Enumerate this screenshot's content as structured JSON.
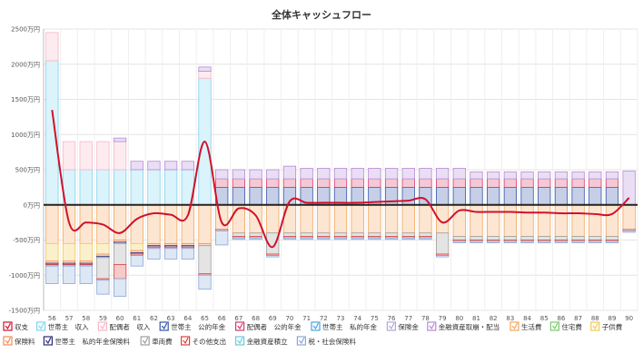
{
  "chart_data": {
    "type": "bar",
    "title": "全体キャッシュフロー",
    "y_unit": "万円",
    "ylim": [
      -1500,
      2500
    ],
    "y_ticks": [
      "2500万円",
      "2000万円",
      "1500万円",
      "1000万円",
      "500万円",
      "0万円",
      "-500万円",
      "-1000万円",
      "-1500万円"
    ],
    "y_tick_values": [
      2500,
      2000,
      1500,
      1000,
      500,
      0,
      -500,
      -1000,
      -1500
    ],
    "categories": [
      "56",
      "57",
      "58",
      "59",
      "60",
      "61",
      "62",
      "63",
      "64",
      "65",
      "66",
      "67",
      "68",
      "69",
      "70",
      "71",
      "72",
      "73",
      "74",
      "75",
      "76",
      "77",
      "78",
      "79",
      "80",
      "81",
      "82",
      "83",
      "84",
      "85",
      "86",
      "87",
      "88",
      "89",
      "90"
    ],
    "legend": [
      {
        "label": "収支",
        "color": "#d0112b"
      },
      {
        "label": "世帯主　収入",
        "color": "#7fd3ef"
      },
      {
        "label": "配偶者　収入",
        "color": "#f7b6c8"
      },
      {
        "label": "世帯主　公的年金",
        "color": "#3355a8"
      },
      {
        "label": "配偶者　公的年金",
        "color": "#d63d6e"
      },
      {
        "label": "世帯主　私的年金",
        "color": "#4aa3df"
      },
      {
        "label": "保険金",
        "color": "#b3a6d6"
      },
      {
        "label": "金融資産取崩・配当",
        "color": "#b58ad6"
      },
      {
        "label": "生活費",
        "color": "#f5a55a"
      },
      {
        "label": "住宅費",
        "color": "#7cc96b"
      },
      {
        "label": "子供費",
        "color": "#f2c94c"
      },
      {
        "label": "保険料",
        "color": "#f08a5a"
      },
      {
        "label": "世帯主　私的年金保険料",
        "color": "#2b2b7a"
      },
      {
        "label": "車両費",
        "color": "#9e9e9e"
      },
      {
        "label": "その他支出",
        "color": "#e04040"
      },
      {
        "label": "金融資産積立",
        "color": "#66ccdd"
      },
      {
        "label": "税・社会保険料",
        "color": "#88a8d8"
      }
    ],
    "series": [
      {
        "name": "世帯主　収入",
        "color": "#7fd3ef",
        "values": [
          2050,
          500,
          500,
          500,
          500,
          500,
          500,
          500,
          500,
          1800,
          0,
          0,
          0,
          0,
          0,
          0,
          0,
          0,
          0,
          0,
          0,
          0,
          0,
          0,
          0,
          0,
          0,
          0,
          0,
          0,
          0,
          0,
          0,
          0,
          0
        ]
      },
      {
        "name": "配偶者　収入",
        "color": "#f7b6c8",
        "values": [
          400,
          400,
          400,
          400,
          400,
          0,
          0,
          0,
          0,
          100,
          0,
          0,
          0,
          0,
          0,
          0,
          0,
          0,
          0,
          0,
          0,
          0,
          0,
          0,
          0,
          0,
          0,
          0,
          0,
          0,
          0,
          0,
          0,
          0,
          0
        ]
      },
      {
        "name": "世帯主　公的年金",
        "color": "#3355a8",
        "values": [
          0,
          0,
          0,
          0,
          0,
          0,
          0,
          0,
          0,
          0,
          250,
          250,
          250,
          250,
          250,
          250,
          250,
          250,
          250,
          250,
          250,
          250,
          250,
          250,
          250,
          250,
          250,
          250,
          250,
          250,
          250,
          250,
          250,
          250,
          0
        ]
      },
      {
        "name": "配偶者　公的年金",
        "color": "#d63d6e",
        "values": [
          0,
          0,
          0,
          0,
          0,
          0,
          0,
          0,
          0,
          0,
          120,
          120,
          120,
          120,
          120,
          120,
          120,
          120,
          120,
          120,
          120,
          120,
          120,
          120,
          120,
          120,
          120,
          120,
          120,
          120,
          120,
          120,
          120,
          120,
          0
        ]
      },
      {
        "name": "世帯主　私的年金",
        "color": "#4aa3df",
        "values": [
          0,
          0,
          0,
          0,
          0,
          0,
          0,
          0,
          0,
          0,
          0,
          0,
          0,
          0,
          0,
          0,
          0,
          0,
          0,
          0,
          0,
          0,
          0,
          0,
          0,
          0,
          0,
          0,
          0,
          0,
          0,
          0,
          0,
          0,
          0
        ]
      },
      {
        "name": "保険金",
        "color": "#b3a6d6",
        "values": [
          0,
          0,
          0,
          0,
          0,
          0,
          0,
          0,
          0,
          0,
          0,
          0,
          0,
          0,
          0,
          0,
          0,
          0,
          0,
          0,
          0,
          0,
          0,
          0,
          0,
          0,
          0,
          0,
          0,
          0,
          0,
          0,
          0,
          0,
          0
        ]
      },
      {
        "name": "金融資産取崩・配当",
        "color": "#b58ad6",
        "values": [
          0,
          0,
          0,
          0,
          50,
          120,
          120,
          120,
          120,
          60,
          130,
          130,
          130,
          130,
          180,
          150,
          150,
          150,
          150,
          150,
          150,
          150,
          150,
          150,
          150,
          100,
          100,
          100,
          100,
          100,
          100,
          100,
          100,
          100,
          480
        ]
      },
      {
        "name": "生活費",
        "color": "#f5a55a",
        "values": [
          -550,
          -550,
          -550,
          -550,
          -500,
          -550,
          -550,
          -550,
          -550,
          -550,
          -350,
          -400,
          -400,
          -400,
          -400,
          -400,
          -400,
          -400,
          -400,
          -400,
          -400,
          -400,
          -400,
          -400,
          -450,
          -450,
          -450,
          -450,
          -450,
          -450,
          -450,
          -450,
          -450,
          -450,
          -350
        ]
      },
      {
        "name": "住宅費",
        "color": "#7cc96b",
        "values": [
          0,
          0,
          0,
          0,
          0,
          0,
          0,
          0,
          0,
          0,
          0,
          0,
          0,
          0,
          0,
          0,
          0,
          0,
          0,
          0,
          0,
          0,
          0,
          0,
          0,
          0,
          0,
          0,
          0,
          0,
          0,
          0,
          0,
          0,
          0
        ]
      },
      {
        "name": "子供費",
        "color": "#f2c94c",
        "values": [
          -250,
          -250,
          -250,
          -150,
          0,
          -100,
          0,
          0,
          0,
          0,
          0,
          0,
          0,
          0,
          0,
          0,
          0,
          0,
          0,
          0,
          0,
          0,
          0,
          0,
          0,
          0,
          0,
          0,
          0,
          0,
          0,
          0,
          0,
          0,
          0
        ]
      },
      {
        "name": "保険料",
        "color": "#f08a5a",
        "values": [
          -30,
          -30,
          -30,
          -30,
          -30,
          -30,
          -30,
          -30,
          -30,
          -30,
          0,
          0,
          0,
          0,
          0,
          0,
          0,
          0,
          0,
          0,
          0,
          0,
          0,
          0,
          0,
          0,
          0,
          0,
          0,
          0,
          0,
          0,
          0,
          0,
          0
        ]
      },
      {
        "name": "世帯主　私的年金保険料",
        "color": "#2b2b7a",
        "values": [
          -20,
          -20,
          -20,
          -20,
          -20,
          -20,
          -20,
          -20,
          -20,
          0,
          0,
          0,
          0,
          0,
          0,
          0,
          0,
          0,
          0,
          0,
          0,
          0,
          0,
          0,
          0,
          0,
          0,
          0,
          0,
          0,
          0,
          0,
          0,
          0,
          0
        ]
      },
      {
        "name": "車両費",
        "color": "#9e9e9e",
        "values": [
          0,
          0,
          0,
          -300,
          -300,
          0,
          0,
          0,
          0,
          -400,
          0,
          -50,
          -50,
          -300,
          -50,
          -50,
          -50,
          -50,
          -50,
          -50,
          -50,
          -50,
          -50,
          -300,
          -50,
          -50,
          -50,
          -50,
          -50,
          -50,
          -50,
          -50,
          -50,
          -50,
          0
        ]
      },
      {
        "name": "その他支出",
        "color": "#e04040",
        "values": [
          -20,
          -20,
          -20,
          -20,
          -200,
          -20,
          -20,
          -20,
          -20,
          -20,
          -20,
          -20,
          -20,
          -20,
          -20,
          -20,
          -20,
          -20,
          -20,
          -20,
          -20,
          -20,
          -20,
          -20,
          -20,
          -20,
          -20,
          -20,
          -20,
          -20,
          -20,
          -20,
          -20,
          -20,
          -20
        ]
      },
      {
        "name": "金融資産積立",
        "color": "#66ccdd",
        "values": [
          0,
          0,
          0,
          0,
          0,
          0,
          0,
          0,
          0,
          0,
          0,
          0,
          0,
          0,
          0,
          0,
          0,
          0,
          0,
          0,
          0,
          0,
          0,
          0,
          0,
          0,
          0,
          0,
          0,
          0,
          0,
          0,
          0,
          0,
          0
        ]
      },
      {
        "name": "税・社会保険料",
        "color": "#88a8d8",
        "values": [
          -250,
          -250,
          -250,
          -200,
          -250,
          -150,
          -150,
          -150,
          -150,
          -200,
          -200,
          -20,
          -20,
          -20,
          -20,
          -20,
          -20,
          -20,
          -20,
          -20,
          -20,
          -20,
          -20,
          -20,
          -20,
          -20,
          -20,
          -20,
          -20,
          -20,
          -20,
          -20,
          -20,
          -20,
          -20
        ]
      }
    ],
    "line": {
      "name": "収支",
      "color": "#d0112b",
      "values": [
        1350,
        -250,
        -250,
        -280,
        -400,
        -200,
        -120,
        -140,
        -150,
        900,
        -250,
        -50,
        -150,
        -600,
        50,
        30,
        30,
        30,
        30,
        40,
        50,
        60,
        80,
        -250,
        -80,
        -100,
        -100,
        -100,
        -110,
        -110,
        -120,
        -120,
        -130,
        -130,
        100
      ]
    }
  }
}
